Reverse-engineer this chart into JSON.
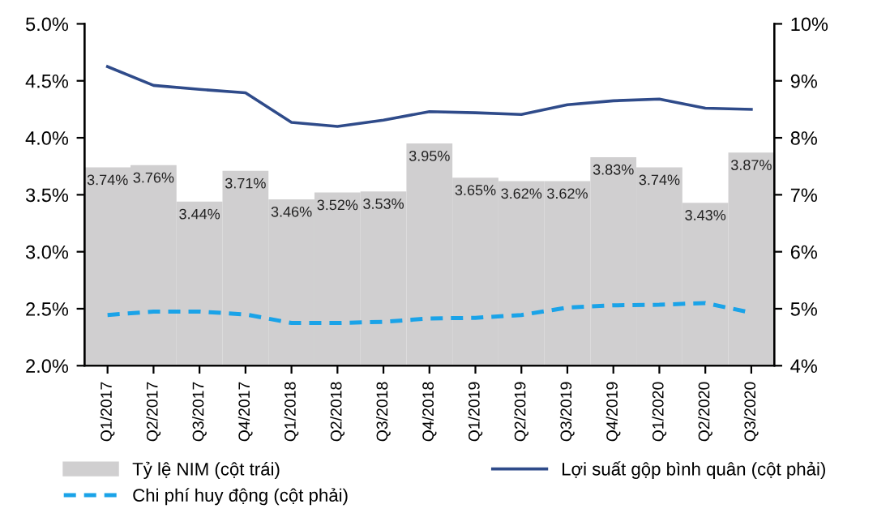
{
  "chart_data": {
    "type": "bar",
    "categories": [
      "Q1/2017",
      "Q2/2017",
      "Q3/2017",
      "Q4/2017",
      "Q1/2018",
      "Q2/2018",
      "Q3/2018",
      "Q4/2018",
      "Q1/2019",
      "Q2/2019",
      "Q3/2019",
      "Q4/2019",
      "Q1/2020",
      "Q2/2020",
      "Q3/2020"
    ],
    "series": [
      {
        "name": "Tỷ lệ NIM (cột trái)",
        "color": "#d0cfd0",
        "values": [
          3.74,
          3.76,
          3.44,
          3.71,
          3.46,
          3.52,
          3.53,
          3.95,
          3.65,
          3.62,
          3.62,
          3.83,
          3.74,
          3.43,
          3.87
        ],
        "value_labels": [
          "3.74%",
          "3.76%",
          "3.44%",
          "3.71%",
          "3.46%",
          "3.52%",
          "3.53%",
          "3.95%",
          "3.65%",
          "3.62%",
          "3.62%",
          "3.83%",
          "3.74%",
          "3.43%",
          "3.87%"
        ]
      },
      {
        "name": "Lợi suất gộp bình quân (cột phải)",
        "type": "line",
        "axis": "y2",
        "color": "#2f4b8a",
        "line_style": "solid",
        "values": [
          9.25,
          8.92,
          8.85,
          8.79,
          8.27,
          8.2,
          8.31,
          8.46,
          8.44,
          8.41,
          8.58,
          8.65,
          8.68,
          8.52,
          8.5
        ]
      },
      {
        "name": "Chi phí huy động (cột phải)",
        "type": "line",
        "axis": "y2",
        "color": "#1aa3e8",
        "line_style": "dashed",
        "values": [
          4.89,
          4.95,
          4.95,
          4.9,
          4.75,
          4.75,
          4.77,
          4.83,
          4.84,
          4.89,
          5.02,
          5.06,
          5.07,
          5.1,
          4.93
        ]
      }
    ],
    "ylim": [
      2.0,
      5.0
    ],
    "yticks": [
      {
        "value": 2.0,
        "label": "2.0%"
      },
      {
        "value": 2.5,
        "label": "2.5%"
      },
      {
        "value": 3.0,
        "label": "3.0%"
      },
      {
        "value": 3.5,
        "label": "3.5%"
      },
      {
        "value": 4.0,
        "label": "4.0%"
      },
      {
        "value": 4.5,
        "label": "4.5%"
      },
      {
        "value": 5.0,
        "label": "5.0%"
      }
    ],
    "y2lim": [
      4,
      10
    ],
    "y2ticks": [
      {
        "value": 4,
        "label": "4%"
      },
      {
        "value": 5,
        "label": "5%"
      },
      {
        "value": 6,
        "label": "6%"
      },
      {
        "value": 7,
        "label": "7%"
      },
      {
        "value": 8,
        "label": "8%"
      },
      {
        "value": 9,
        "label": "9%"
      },
      {
        "value": 10,
        "label": "10%"
      }
    ],
    "grid": false,
    "legend": "bottom"
  }
}
